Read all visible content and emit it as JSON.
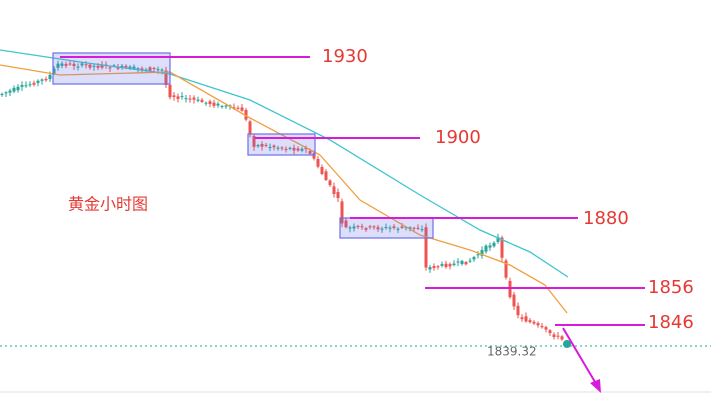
{
  "title": "黄金小时图",
  "levels": [
    {
      "label": "1930"
    },
    {
      "label": "1900"
    },
    {
      "label": "1880"
    },
    {
      "label": "1856"
    },
    {
      "label": "1846"
    }
  ],
  "last_price": "1839.32"
}
